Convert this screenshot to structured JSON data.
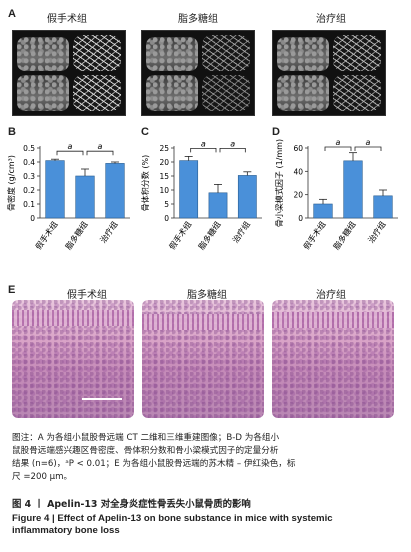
{
  "panels": {
    "A": {
      "letter": "A"
    },
    "B": {
      "letter": "B"
    },
    "C": {
      "letter": "C"
    },
    "D": {
      "letter": "D"
    },
    "E": {
      "letter": "E"
    }
  },
  "groups": [
    "假手术组",
    "脂多糖组",
    "治疗组"
  ],
  "sig_marker": "a",
  "scale_bar": {
    "length_um": 200
  },
  "chart_data": [
    {
      "type": "bar",
      "panel": "B",
      "categories": [
        "假手术组",
        "脂多糖组",
        "治疗组"
      ],
      "values": [
        0.41,
        0.3,
        0.39
      ],
      "errors": [
        0.01,
        0.05,
        0.01
      ],
      "ylabel": "骨密度 (g/cm³)",
      "ylim": [
        0,
        0.5
      ],
      "yticks": [
        "0",
        "0.1",
        "0.2",
        "0.3",
        "0.4",
        "0.5"
      ],
      "color": "#4a90d9"
    },
    {
      "type": "bar",
      "panel": "C",
      "categories": [
        "假手术组",
        "脂多糖组",
        "治疗组"
      ],
      "values": [
        20.5,
        9.0,
        15.2
      ],
      "errors": [
        1.5,
        3.0,
        1.3
      ],
      "ylabel": "骨体积分数 (%)",
      "ylim": [
        0,
        25
      ],
      "yticks": [
        "0",
        "5",
        "10",
        "15",
        "20",
        "25"
      ],
      "color": "#4a90d9"
    },
    {
      "type": "bar",
      "panel": "D",
      "categories": [
        "假手术组",
        "脂多糖组",
        "治疗组"
      ],
      "values": [
        12,
        49,
        19
      ],
      "errors": [
        4,
        7,
        5
      ],
      "ylabel": "骨小梁模式因子 (1/mm)",
      "ylim": [
        0,
        60
      ],
      "yticks": [
        "0",
        "20",
        "40",
        "60"
      ],
      "color": "#4a90d9"
    }
  ],
  "caption": {
    "line1": "图注：A 为各组小鼠股骨远端 CT 二维和三维重建图像；B-D 为各组小",
    "line2": "鼠股骨远端感兴趣区骨密度、骨体积分数和骨小梁模式因子的定量分析",
    "line3": "结果 (n=6)，ᵃP < 0.01；E 为各组小鼠股骨远端的苏木精 – 伊红染色，标",
    "line4": "尺 =200 μm。",
    "fig_cn": "图 4 丨 Apelin-13 对全身炎症性骨丢失小鼠骨质的影响",
    "fig_en_1": "Figure 4  |  Effect of Apelin-13 on bone substance in mice with systemic",
    "fig_en_2": "inflammatory bone loss"
  }
}
